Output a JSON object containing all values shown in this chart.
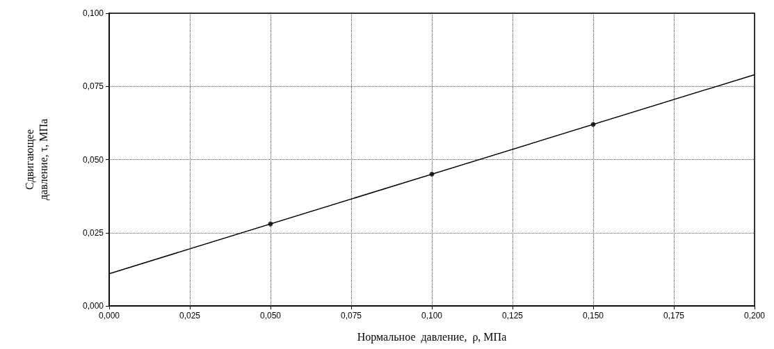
{
  "chart_data": {
    "type": "scatter",
    "xlabel": "Нормальное  давление,  ρ, МПа",
    "ylabel": "Сдвигающее\nдавление, τ, МПа",
    "series": [
      {
        "type": "scatter",
        "color": "#000000",
        "x": [
          0.05,
          0.1,
          0.15
        ],
        "values": [
          0.028,
          0.045,
          0.062
        ],
        "marker": "circle"
      },
      {
        "type": "line",
        "color": "#000000",
        "x": [
          0,
          0.2
        ],
        "values": [
          0.011,
          0.079
        ],
        "marker": "none",
        "line_style": "solid"
      }
    ],
    "xlim": [
      0,
      0.2
    ],
    "xticks": [
      {
        "value": 0,
        "label": "0,000"
      },
      {
        "value": 0.025,
        "label": "0,025"
      },
      {
        "value": 0.05,
        "label": "0,050"
      },
      {
        "value": 0.075,
        "label": "0,075"
      },
      {
        "value": 0.1,
        "label": "0,100"
      },
      {
        "value": 0.125,
        "label": "0,125"
      },
      {
        "value": 0.15,
        "label": "0,150"
      },
      {
        "value": 0.175,
        "label": "0,175"
      },
      {
        "value": 0.2,
        "label": "0,200"
      }
    ],
    "ylim": [
      0,
      0.1
    ],
    "yticks": [
      {
        "value": 0,
        "label": "0,000"
      },
      {
        "value": 0.025,
        "label": "0,025"
      },
      {
        "value": 0.05,
        "label": "0,050"
      },
      {
        "value": 0.075,
        "label": "0,075"
      },
      {
        "value": 0.1,
        "label": "0,100"
      }
    ],
    "grid": true
  }
}
